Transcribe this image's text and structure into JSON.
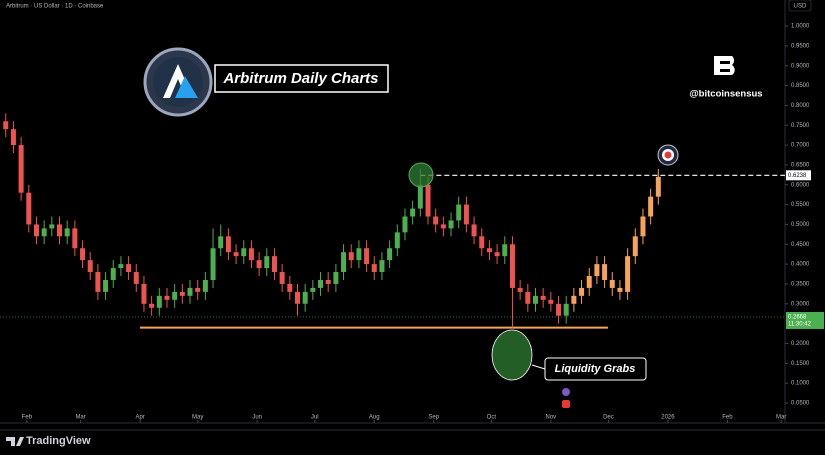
{
  "header": {
    "symbol": "Arbitrum · US Dollar · 1D · Coinbase",
    "currency": "USD",
    "brand": "TradingView"
  },
  "chart_data": {
    "type": "candlestick",
    "title": "Arbitrum Daily Charts",
    "handle": "@bitcoinsensus",
    "annotation": "Liquidity Grabs",
    "xlim": [
      17,
      426
    ],
    "xticks": [
      {
        "value": 31,
        "label": "Feb"
      },
      {
        "value": 59,
        "label": "Mar"
      },
      {
        "value": 90,
        "label": "Apr"
      },
      {
        "value": 120,
        "label": "May"
      },
      {
        "value": 151,
        "label": "Jun"
      },
      {
        "value": 181,
        "label": "Jul"
      },
      {
        "value": 212,
        "label": "Aug"
      },
      {
        "value": 243,
        "label": "Sep"
      },
      {
        "value": 273,
        "label": "Oct"
      },
      {
        "value": 304,
        "label": "Nov"
      },
      {
        "value": 334,
        "label": "Dec"
      },
      {
        "value": 365,
        "label": "2026"
      },
      {
        "value": 396,
        "label": "Feb"
      },
      {
        "value": 424,
        "label": "Mar"
      }
    ],
    "ylim": [
      0.05,
      1.0
    ],
    "yticks": [
      {
        "value": 0.05,
        "label": "0.0500"
      },
      {
        "value": 0.1,
        "label": "0.1000"
      },
      {
        "value": 0.15,
        "label": "0.1500"
      },
      {
        "value": 0.2,
        "label": "0.2000"
      },
      {
        "value": 0.3,
        "label": "0.3000"
      },
      {
        "value": 0.35,
        "label": "0.3500"
      },
      {
        "value": 0.4,
        "label": "0.4000"
      },
      {
        "value": 0.45,
        "label": "0.4500"
      },
      {
        "value": 0.5,
        "label": "0.5000"
      },
      {
        "value": 0.55,
        "label": "0.5500"
      },
      {
        "value": 0.6,
        "label": "0.6000"
      },
      {
        "value": 0.65,
        "label": "0.6500"
      },
      {
        "value": 0.7,
        "label": "0.7000"
      },
      {
        "value": 0.75,
        "label": "0.7500"
      },
      {
        "value": 0.8,
        "label": "0.8000"
      },
      {
        "value": 0.85,
        "label": "0.8500"
      },
      {
        "value": 0.9,
        "label": "0.9000"
      },
      {
        "value": 0.95,
        "label": "0.9500"
      },
      {
        "value": 1.0,
        "label": "1.0000"
      }
    ],
    "grid": false,
    "up_color": "#4caf50",
    "down_color": "#ef5350",
    "candles": {
      "x": [
        20,
        24,
        28,
        32,
        36,
        40,
        44,
        48,
        52,
        56,
        60,
        64,
        68,
        72,
        76,
        80,
        84,
        88,
        92,
        96,
        100,
        104,
        108,
        112,
        116,
        120,
        124,
        128,
        132,
        136,
        140,
        144,
        148,
        152,
        156,
        160,
        164,
        168,
        172,
        176,
        180,
        184,
        188,
        192,
        196,
        200,
        204,
        208,
        212,
        216,
        220,
        224,
        228,
        232,
        236,
        240,
        244,
        248,
        252,
        256,
        260,
        264,
        268,
        272,
        276,
        280,
        284,
        288,
        292,
        296,
        300,
        304,
        308,
        312
      ],
      "open": [
        0.76,
        0.74,
        0.7,
        0.58,
        0.5,
        0.47,
        0.49,
        0.5,
        0.47,
        0.49,
        0.44,
        0.41,
        0.38,
        0.33,
        0.36,
        0.39,
        0.4,
        0.38,
        0.35,
        0.3,
        0.29,
        0.32,
        0.31,
        0.33,
        0.32,
        0.34,
        0.33,
        0.36,
        0.44,
        0.47,
        0.43,
        0.42,
        0.44,
        0.41,
        0.39,
        0.42,
        0.38,
        0.35,
        0.33,
        0.3,
        0.33,
        0.34,
        0.36,
        0.35,
        0.38,
        0.43,
        0.41,
        0.44,
        0.4,
        0.38,
        0.41,
        0.44,
        0.48,
        0.52,
        0.54,
        0.6,
        0.52,
        0.5,
        0.49,
        0.51,
        0.55,
        0.5,
        0.47,
        0.44,
        0.43,
        0.42,
        0.45,
        0.34,
        0.33,
        0.3,
        0.32,
        0.31,
        0.3,
        0.27
      ],
      "high": [
        0.78,
        0.76,
        0.72,
        0.6,
        0.52,
        0.51,
        0.52,
        0.52,
        0.51,
        0.51,
        0.46,
        0.43,
        0.4,
        0.38,
        0.41,
        0.42,
        0.42,
        0.4,
        0.37,
        0.32,
        0.34,
        0.34,
        0.35,
        0.35,
        0.36,
        0.36,
        0.38,
        0.49,
        0.5,
        0.49,
        0.45,
        0.46,
        0.46,
        0.43,
        0.44,
        0.44,
        0.4,
        0.37,
        0.35,
        0.35,
        0.36,
        0.38,
        0.38,
        0.4,
        0.45,
        0.45,
        0.46,
        0.46,
        0.42,
        0.43,
        0.46,
        0.5,
        0.54,
        0.56,
        0.64,
        0.62,
        0.54,
        0.52,
        0.53,
        0.57,
        0.57,
        0.52,
        0.49,
        0.46,
        0.45,
        0.47,
        0.47,
        0.36,
        0.35,
        0.34,
        0.34,
        0.33,
        0.32,
        0.32
      ],
      "low": [
        0.72,
        0.68,
        0.56,
        0.48,
        0.45,
        0.45,
        0.47,
        0.45,
        0.45,
        0.42,
        0.39,
        0.36,
        0.31,
        0.31,
        0.34,
        0.37,
        0.36,
        0.33,
        0.28,
        0.27,
        0.27,
        0.29,
        0.29,
        0.3,
        0.3,
        0.31,
        0.31,
        0.34,
        0.42,
        0.41,
        0.4,
        0.4,
        0.39,
        0.37,
        0.37,
        0.36,
        0.33,
        0.31,
        0.27,
        0.28,
        0.31,
        0.32,
        0.33,
        0.33,
        0.36,
        0.39,
        0.39,
        0.38,
        0.36,
        0.36,
        0.39,
        0.42,
        0.46,
        0.5,
        0.52,
        0.5,
        0.48,
        0.47,
        0.47,
        0.49,
        0.48,
        0.45,
        0.42,
        0.41,
        0.4,
        0.4,
        0.24,
        0.31,
        0.28,
        0.28,
        0.29,
        0.28,
        0.25,
        0.25
      ],
      "close": [
        0.74,
        0.7,
        0.58,
        0.5,
        0.47,
        0.49,
        0.5,
        0.47,
        0.49,
        0.44,
        0.41,
        0.38,
        0.33,
        0.36,
        0.39,
        0.4,
        0.38,
        0.35,
        0.3,
        0.29,
        0.32,
        0.31,
        0.33,
        0.32,
        0.34,
        0.33,
        0.36,
        0.44,
        0.47,
        0.43,
        0.42,
        0.44,
        0.41,
        0.39,
        0.42,
        0.38,
        0.35,
        0.33,
        0.3,
        0.33,
        0.34,
        0.36,
        0.35,
        0.38,
        0.43,
        0.41,
        0.44,
        0.4,
        0.38,
        0.41,
        0.44,
        0.48,
        0.52,
        0.54,
        0.6,
        0.52,
        0.5,
        0.49,
        0.51,
        0.55,
        0.5,
        0.47,
        0.44,
        0.43,
        0.42,
        0.45,
        0.34,
        0.33,
        0.3,
        0.32,
        0.31,
        0.3,
        0.27,
        0.3
      ]
    },
    "projection": {
      "color": "#f7a35c",
      "x": [
        316,
        320,
        324,
        328,
        332,
        336,
        340,
        344,
        348,
        352,
        356,
        360
      ],
      "open": [
        0.3,
        0.32,
        0.34,
        0.37,
        0.4,
        0.36,
        0.34,
        0.33,
        0.42,
        0.47,
        0.52,
        0.57
      ],
      "high": [
        0.34,
        0.36,
        0.39,
        0.42,
        0.42,
        0.38,
        0.36,
        0.44,
        0.49,
        0.54,
        0.59,
        0.64
      ],
      "low": [
        0.28,
        0.3,
        0.32,
        0.35,
        0.34,
        0.32,
        0.31,
        0.31,
        0.4,
        0.45,
        0.5,
        0.55
      ],
      "close": [
        0.32,
        0.34,
        0.37,
        0.4,
        0.36,
        0.34,
        0.33,
        0.42,
        0.47,
        0.52,
        0.57,
        0.62
      ]
    },
    "support_level": 0.24,
    "support_color": "#f7a35c",
    "target_level": 0.6238,
    "last_price": 0.2668,
    "countdown": "11:30:42"
  }
}
